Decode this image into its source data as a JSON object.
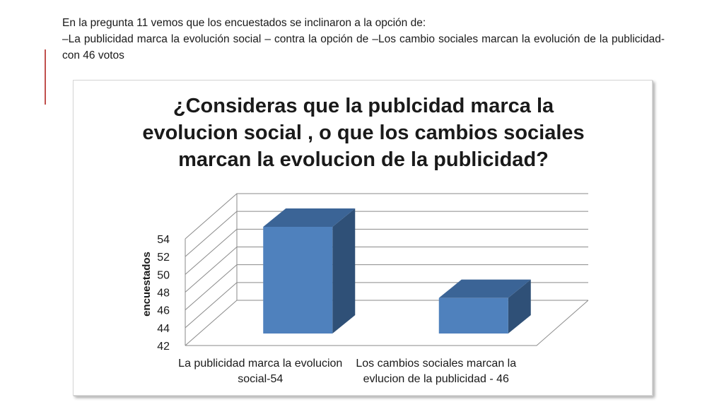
{
  "intro": {
    "line1": "En la pregunta 11 vemos que los encuestados se inclinaron a la opción de:",
    "line2": "–La publicidad marca la evolución social – contra la opción de –Los cambio sociales marcan la evolución de la publicidad- con 46 votos"
  },
  "colors": {
    "accent_line": "#c0504d",
    "bar_front": "#4f81bd",
    "bar_top": "#3b6496",
    "bar_side": "#2f5077"
  },
  "chart_data": {
    "type": "bar",
    "style": "3d-column",
    "title_lines": [
      "¿Consideras que  la publcidad marca la",
      "evolucion social , o que los cambios sociales",
      "marcan la evolucion de la publicidad?"
    ],
    "categories": [
      [
        "La publicidad marca la evolucion",
        "social-54"
      ],
      [
        "Los cambios sociales marcan la",
        "evlucion de la publicidad - 46"
      ]
    ],
    "values": [
      54,
      46
    ],
    "ylabel": "encuestados",
    "xlabel": "",
    "ylim": [
      42,
      54
    ],
    "yticks": [
      42,
      44,
      46,
      48,
      50,
      52,
      54
    ],
    "grid": true,
    "legend": "none"
  }
}
